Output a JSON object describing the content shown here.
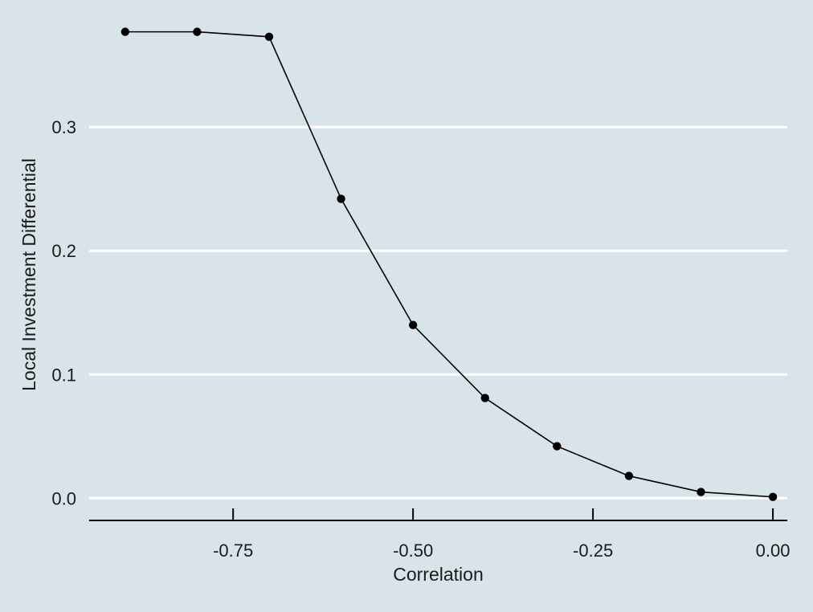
{
  "chart_data": {
    "type": "line",
    "title": "",
    "xlabel": "Correlation",
    "ylabel": "Local Investment Differential",
    "xlim": [
      -0.95,
      0.02
    ],
    "ylim": [
      -0.018,
      0.38
    ],
    "x_ticks": [
      -0.75,
      -0.5,
      -0.25,
      0.0
    ],
    "x_tick_labels": [
      "-0.75",
      "-0.50",
      "-0.25",
      "0.00"
    ],
    "y_ticks": [
      0.0,
      0.1,
      0.2,
      0.3
    ],
    "y_tick_labels": [
      "0.0",
      "0.1",
      "0.2",
      "0.3"
    ],
    "grid": "horizontal",
    "series": [
      {
        "x": [
          -0.9,
          -0.8,
          -0.7,
          -0.6,
          -0.5,
          -0.4,
          -0.3,
          -0.2,
          -0.1,
          0.0
        ],
        "y": [
          0.377,
          0.377,
          0.373,
          0.242,
          0.14,
          0.081,
          0.042,
          0.018,
          0.005,
          0.001
        ]
      }
    ],
    "colors": {
      "background": "#d9e3ea",
      "grid": "#ffffff",
      "line": "#000000",
      "marker": "#000000",
      "axis": "#000000",
      "text": "#1a1a1a"
    }
  }
}
